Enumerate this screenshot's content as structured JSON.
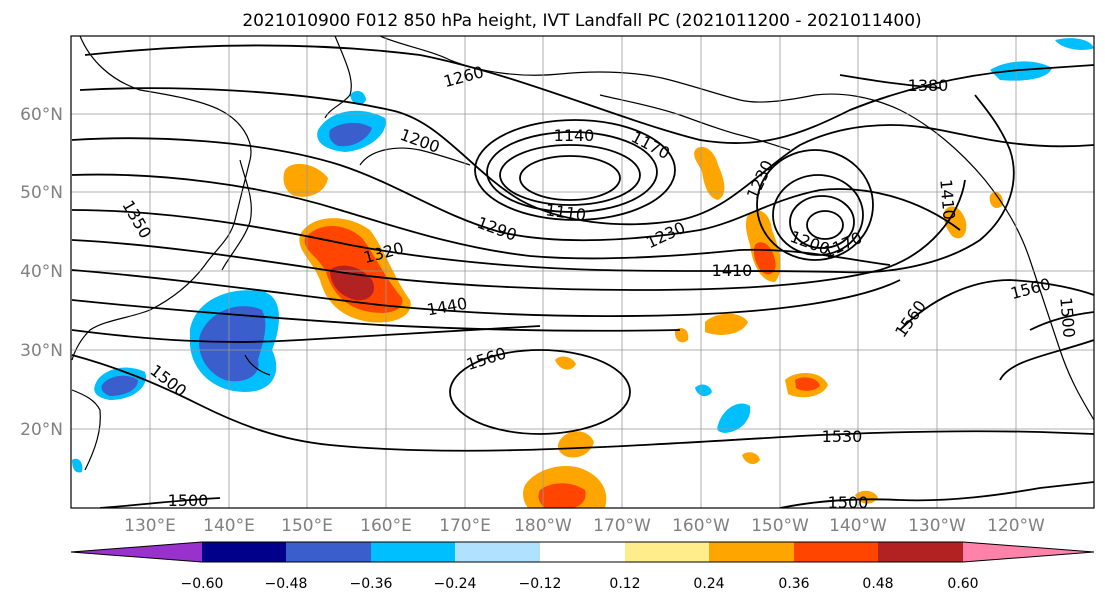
{
  "title": "2021010900 F012 850 hPa height, IVT Landfall PC (2021011200 - 2021011400)",
  "lat_labels": [
    "60°N",
    "50°N",
    "40°N",
    "30°N",
    "20°N"
  ],
  "lon_labels": [
    "130°E",
    "140°E",
    "150°E",
    "160°E",
    "170°E",
    "180°W",
    "170°W",
    "160°W",
    "150°W",
    "140°W",
    "130°W",
    "120°W"
  ],
  "contour_labels": [
    "1260",
    "1200",
    "1140",
    "1170",
    "1380",
    "1350",
    "1110",
    "1290",
    "1230",
    "1230",
    "1320",
    "1410",
    "1200",
    "1170",
    "1440",
    "1560",
    "1560",
    "1560",
    "1500",
    "1530",
    "1500",
    "1500",
    "1410",
    "1500"
  ],
  "colorbar": {
    "ticks": [
      "−0.60",
      "−0.48",
      "−0.36",
      "−0.24",
      "−0.12",
      "0.12",
      "0.24",
      "0.36",
      "0.48",
      "0.60"
    ],
    "colors": [
      "#9932cc",
      "#00008b",
      "#3a5fcd",
      "#00bfff",
      "#b0e2ff",
      "#ffffff",
      "#ffec8b",
      "#ffa500",
      "#ff4500",
      "#b22222",
      "#ff82ab"
    ]
  }
}
